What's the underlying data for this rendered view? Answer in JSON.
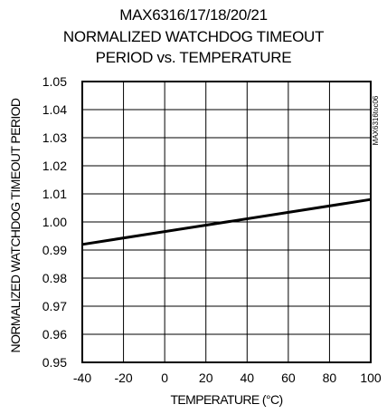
{
  "chart_data": {
    "type": "line",
    "title_lines": [
      "MAX6316/17/18/20/21",
      "NORMALIZED WATCHDOG TIMEOUT",
      "PERIOD vs. TEMPERATURE"
    ],
    "xlabel": "TEMPERATURE (°C)",
    "ylabel": "NORMALIZED WATCHDOG TIMEOUT PERIOD",
    "side_code": "MAX6316toc06",
    "xlim": [
      -40,
      100
    ],
    "ylim": [
      0.95,
      1.05
    ],
    "x_ticks": [
      -40,
      -20,
      0,
      20,
      40,
      60,
      80,
      100
    ],
    "x_tick_labels": [
      "-40",
      "-20",
      "0",
      "20",
      "40",
      "60",
      "80",
      "100"
    ],
    "y_ticks": [
      0.95,
      0.96,
      0.97,
      0.98,
      0.99,
      1.0,
      1.01,
      1.02,
      1.03,
      1.04,
      1.05
    ],
    "y_tick_labels": [
      "0.95",
      "0.96",
      "0.97",
      "0.98",
      "0.99",
      "1.00",
      "1.01",
      "1.02",
      "1.03",
      "1.04",
      "1.05"
    ],
    "grid": true,
    "legend": "none",
    "series": [
      {
        "x": [
          -40,
          100
        ],
        "y": [
          0.992,
          1.008
        ]
      }
    ],
    "colors": {
      "line": "#000000",
      "grid": "#000000",
      "background": "#ffffff"
    }
  }
}
